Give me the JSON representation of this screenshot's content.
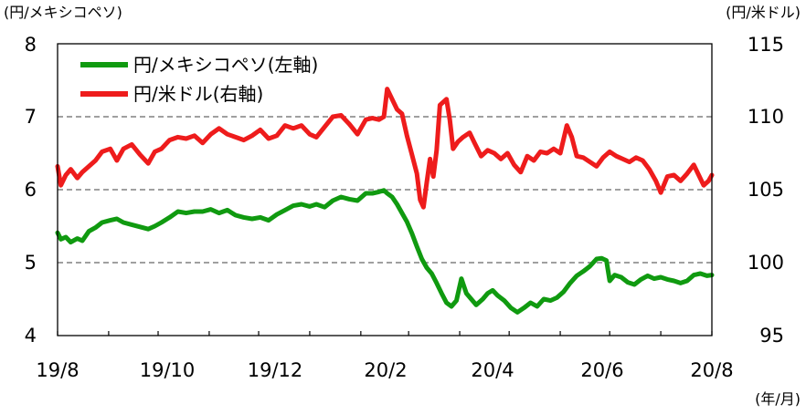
{
  "chart_data": {
    "type": "line",
    "unit_left": "(円/メキシコペソ)",
    "unit_right": "(円/米ドル)",
    "unit_x": "(年/月)",
    "x_ticks": [
      "19/8",
      "19/10",
      "19/12",
      "20/2",
      "20/4",
      "20/6",
      "20/8"
    ],
    "y_left": {
      "min": 4,
      "max": 8,
      "ticks": [
        "4",
        "5",
        "6",
        "7",
        "8"
      ]
    },
    "y_right": {
      "min": 95,
      "max": 115,
      "ticks": [
        "95",
        "100",
        "105",
        "110",
        "115"
      ]
    },
    "dashed_gridlines_left": [
      5,
      6,
      7
    ],
    "legend_position": "top-left",
    "series": [
      {
        "name": "円/メキシコペソ(左軸)",
        "axis": "left",
        "color": "#109a10",
        "points": [
          [
            "2019-08-01",
            5.41
          ],
          [
            "2019-08-03",
            5.32
          ],
          [
            "2019-08-06",
            5.35
          ],
          [
            "2019-08-09",
            5.28
          ],
          [
            "2019-08-13",
            5.33
          ],
          [
            "2019-08-16",
            5.3
          ],
          [
            "2019-08-20",
            5.43
          ],
          [
            "2019-08-24",
            5.48
          ],
          [
            "2019-08-28",
            5.55
          ],
          [
            "2019-09-02",
            5.58
          ],
          [
            "2019-09-06",
            5.6
          ],
          [
            "2019-09-10",
            5.55
          ],
          [
            "2019-09-15",
            5.52
          ],
          [
            "2019-09-20",
            5.49
          ],
          [
            "2019-09-25",
            5.46
          ],
          [
            "2019-09-29",
            5.5
          ],
          [
            "2019-10-03",
            5.55
          ],
          [
            "2019-10-08",
            5.62
          ],
          [
            "2019-10-13",
            5.7
          ],
          [
            "2019-10-18",
            5.68
          ],
          [
            "2019-10-23",
            5.7
          ],
          [
            "2019-10-28",
            5.7
          ],
          [
            "2019-11-02",
            5.73
          ],
          [
            "2019-11-07",
            5.68
          ],
          [
            "2019-11-12",
            5.72
          ],
          [
            "2019-11-17",
            5.65
          ],
          [
            "2019-11-22",
            5.62
          ],
          [
            "2019-11-27",
            5.6
          ],
          [
            "2019-12-02",
            5.62
          ],
          [
            "2019-12-07",
            5.58
          ],
          [
            "2019-12-12",
            5.66
          ],
          [
            "2019-12-17",
            5.72
          ],
          [
            "2019-12-22",
            5.78
          ],
          [
            "2019-12-27",
            5.8
          ],
          [
            "2020-01-01",
            5.77
          ],
          [
            "2020-01-05",
            5.8
          ],
          [
            "2020-01-10",
            5.76
          ],
          [
            "2020-01-15",
            5.85
          ],
          [
            "2020-01-20",
            5.9
          ],
          [
            "2020-01-25",
            5.87
          ],
          [
            "2020-01-30",
            5.85
          ],
          [
            "2020-02-04",
            5.95
          ],
          [
            "2020-02-08",
            5.95
          ],
          [
            "2020-02-12",
            5.97
          ],
          [
            "2020-02-15",
            5.99
          ],
          [
            "2020-02-17",
            5.95
          ],
          [
            "2020-02-20",
            5.9
          ],
          [
            "2020-02-23",
            5.8
          ],
          [
            "2020-02-26",
            5.68
          ],
          [
            "2020-02-29",
            5.56
          ],
          [
            "2020-03-03",
            5.4
          ],
          [
            "2020-03-06",
            5.22
          ],
          [
            "2020-03-09",
            5.05
          ],
          [
            "2020-03-12",
            4.93
          ],
          [
            "2020-03-15",
            4.85
          ],
          [
            "2020-03-18",
            4.72
          ],
          [
            "2020-03-21",
            4.58
          ],
          [
            "2020-03-24",
            4.45
          ],
          [
            "2020-03-27",
            4.4
          ],
          [
            "2020-03-30",
            4.48
          ],
          [
            "2020-04-02",
            4.78
          ],
          [
            "2020-04-05",
            4.58
          ],
          [
            "2020-04-08",
            4.5
          ],
          [
            "2020-04-11",
            4.42
          ],
          [
            "2020-04-15",
            4.5
          ],
          [
            "2020-04-18",
            4.58
          ],
          [
            "2020-04-21",
            4.62
          ],
          [
            "2020-04-24",
            4.55
          ],
          [
            "2020-04-28",
            4.48
          ],
          [
            "2020-05-02",
            4.38
          ],
          [
            "2020-05-06",
            4.32
          ],
          [
            "2020-05-10",
            4.38
          ],
          [
            "2020-05-14",
            4.45
          ],
          [
            "2020-05-18",
            4.4
          ],
          [
            "2020-05-22",
            4.5
          ],
          [
            "2020-05-26",
            4.48
          ],
          [
            "2020-05-30",
            4.52
          ],
          [
            "2020-06-03",
            4.6
          ],
          [
            "2020-06-07",
            4.72
          ],
          [
            "2020-06-11",
            4.82
          ],
          [
            "2020-06-15",
            4.88
          ],
          [
            "2020-06-19",
            4.95
          ],
          [
            "2020-06-23",
            5.05
          ],
          [
            "2020-06-26",
            5.06
          ],
          [
            "2020-06-29",
            5.03
          ],
          [
            "2020-07-01",
            4.75
          ],
          [
            "2020-07-04",
            4.83
          ],
          [
            "2020-07-08",
            4.8
          ],
          [
            "2020-07-12",
            4.73
          ],
          [
            "2020-07-16",
            4.7
          ],
          [
            "2020-07-20",
            4.77
          ],
          [
            "2020-07-24",
            4.82
          ],
          [
            "2020-07-28",
            4.78
          ],
          [
            "2020-08-01",
            4.8
          ],
          [
            "2020-08-05",
            4.77
          ],
          [
            "2020-08-09",
            4.75
          ],
          [
            "2020-08-13",
            4.72
          ],
          [
            "2020-08-17",
            4.75
          ],
          [
            "2020-08-21",
            4.83
          ],
          [
            "2020-08-25",
            4.85
          ],
          [
            "2020-08-29",
            4.82
          ],
          [
            "2020-09-01",
            4.83
          ]
        ]
      },
      {
        "name": "円/米ドル(右軸)",
        "axis": "right",
        "color": "#ee1c1c",
        "points": [
          [
            "2019-08-01",
            106.6
          ],
          [
            "2019-08-03",
            105.3
          ],
          [
            "2019-08-06",
            106.0
          ],
          [
            "2019-08-09",
            106.4
          ],
          [
            "2019-08-13",
            105.8
          ],
          [
            "2019-08-16",
            106.2
          ],
          [
            "2019-08-20",
            106.6
          ],
          [
            "2019-08-24",
            107.0
          ],
          [
            "2019-08-28",
            107.6
          ],
          [
            "2019-09-02",
            107.8
          ],
          [
            "2019-09-06",
            107.0
          ],
          [
            "2019-09-10",
            107.8
          ],
          [
            "2019-09-15",
            108.1
          ],
          [
            "2019-09-20",
            107.4
          ],
          [
            "2019-09-25",
            106.8
          ],
          [
            "2019-09-29",
            107.6
          ],
          [
            "2019-10-03",
            107.8
          ],
          [
            "2019-10-08",
            108.4
          ],
          [
            "2019-10-13",
            108.6
          ],
          [
            "2019-10-18",
            108.5
          ],
          [
            "2019-10-23",
            108.7
          ],
          [
            "2019-10-28",
            108.2
          ],
          [
            "2019-11-02",
            108.8
          ],
          [
            "2019-11-07",
            109.2
          ],
          [
            "2019-11-12",
            108.8
          ],
          [
            "2019-11-17",
            108.6
          ],
          [
            "2019-11-22",
            108.4
          ],
          [
            "2019-11-27",
            108.7
          ],
          [
            "2019-12-02",
            109.1
          ],
          [
            "2019-12-07",
            108.5
          ],
          [
            "2019-12-12",
            108.7
          ],
          [
            "2019-12-17",
            109.4
          ],
          [
            "2019-12-22",
            109.2
          ],
          [
            "2019-12-27",
            109.4
          ],
          [
            "2020-01-01",
            108.8
          ],
          [
            "2020-01-05",
            108.6
          ],
          [
            "2020-01-10",
            109.3
          ],
          [
            "2020-01-15",
            110.0
          ],
          [
            "2020-01-20",
            110.1
          ],
          [
            "2020-01-25",
            109.5
          ],
          [
            "2020-01-30",
            108.8
          ],
          [
            "2020-02-04",
            109.8
          ],
          [
            "2020-02-08",
            109.9
          ],
          [
            "2020-02-12",
            109.8
          ],
          [
            "2020-02-15",
            110.0
          ],
          [
            "2020-02-17",
            111.9
          ],
          [
            "2020-02-20",
            111.2
          ],
          [
            "2020-02-23",
            110.5
          ],
          [
            "2020-02-26",
            110.2
          ],
          [
            "2020-02-29",
            108.7
          ],
          [
            "2020-03-03",
            107.4
          ],
          [
            "2020-03-06",
            106.1
          ],
          [
            "2020-03-08",
            104.3
          ],
          [
            "2020-03-10",
            103.8
          ],
          [
            "2020-03-12",
            105.5
          ],
          [
            "2020-03-14",
            107.1
          ],
          [
            "2020-03-16",
            105.9
          ],
          [
            "2020-03-18",
            107.7
          ],
          [
            "2020-03-20",
            110.8
          ],
          [
            "2020-03-22",
            111.0
          ],
          [
            "2020-03-24",
            111.2
          ],
          [
            "2020-03-26",
            109.8
          ],
          [
            "2020-03-28",
            107.8
          ],
          [
            "2020-03-31",
            108.3
          ],
          [
            "2020-04-03",
            108.6
          ],
          [
            "2020-04-07",
            108.9
          ],
          [
            "2020-04-10",
            108.2
          ],
          [
            "2020-04-14",
            107.3
          ],
          [
            "2020-04-18",
            107.7
          ],
          [
            "2020-04-22",
            107.5
          ],
          [
            "2020-04-26",
            107.1
          ],
          [
            "2020-04-30",
            107.5
          ],
          [
            "2020-05-04",
            106.7
          ],
          [
            "2020-05-08",
            106.2
          ],
          [
            "2020-05-12",
            107.3
          ],
          [
            "2020-05-16",
            107.0
          ],
          [
            "2020-05-20",
            107.6
          ],
          [
            "2020-05-24",
            107.5
          ],
          [
            "2020-05-28",
            107.8
          ],
          [
            "2020-06-01",
            107.5
          ],
          [
            "2020-06-05",
            109.4
          ],
          [
            "2020-06-08",
            108.6
          ],
          [
            "2020-06-11",
            107.3
          ],
          [
            "2020-06-15",
            107.2
          ],
          [
            "2020-06-19",
            106.9
          ],
          [
            "2020-06-23",
            106.6
          ],
          [
            "2020-06-27",
            107.2
          ],
          [
            "2020-07-01",
            107.6
          ],
          [
            "2020-07-05",
            107.3
          ],
          [
            "2020-07-09",
            107.1
          ],
          [
            "2020-07-13",
            106.9
          ],
          [
            "2020-07-17",
            107.2
          ],
          [
            "2020-07-21",
            107.0
          ],
          [
            "2020-07-25",
            106.4
          ],
          [
            "2020-07-29",
            105.6
          ],
          [
            "2020-08-01",
            104.8
          ],
          [
            "2020-08-05",
            105.9
          ],
          [
            "2020-08-09",
            106.0
          ],
          [
            "2020-08-13",
            105.6
          ],
          [
            "2020-08-17",
            106.1
          ],
          [
            "2020-08-21",
            106.7
          ],
          [
            "2020-08-24",
            106.0
          ],
          [
            "2020-08-27",
            105.3
          ],
          [
            "2020-08-30",
            105.6
          ],
          [
            "2020-09-01",
            106.0
          ]
        ]
      }
    ]
  }
}
